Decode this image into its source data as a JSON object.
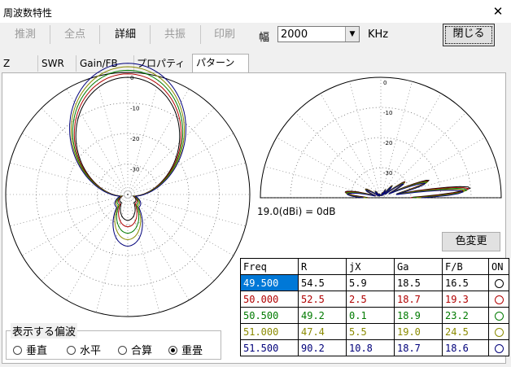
{
  "window": {
    "title": "周波数特性",
    "close_glyph": "✕"
  },
  "toolbar": {
    "buttons": [
      {
        "label": "推測",
        "enabled": false
      },
      {
        "label": "全点",
        "enabled": false
      },
      {
        "label": "詳細",
        "enabled": true
      },
      {
        "label": "共振",
        "enabled": false
      },
      {
        "label": "印刷",
        "enabled": false
      }
    ],
    "width_label": "幅",
    "width_value": "2000",
    "unit_label": "KHz",
    "close_button": "閉じる"
  },
  "tabs": [
    {
      "label": "Z",
      "active": false
    },
    {
      "label": "SWR",
      "active": false
    },
    {
      "label": "Gain/FB",
      "active": false
    },
    {
      "label": "プロパティ",
      "active": false
    },
    {
      "label": "パターン",
      "active": true
    }
  ],
  "plot": {
    "horizontal_ring_labels": [
      "0",
      "-10",
      "-20",
      "-30"
    ],
    "vertical_ring_labels": [
      "0",
      "-10",
      "-20",
      "-30"
    ],
    "reference_text": "19.0(dBi) = 0dB"
  },
  "color_button": "色変更",
  "table": {
    "headers": [
      "Freq",
      "R",
      "jX",
      "Ga",
      "F/B",
      "ON"
    ],
    "rows": [
      {
        "freq": "49.500",
        "r": "54.5",
        "jx": "5.9",
        "ga": "18.5",
        "fb": "16.5",
        "color": "#000000",
        "selected": true
      },
      {
        "freq": "50.000",
        "r": "52.5",
        "jx": "2.5",
        "ga": "18.7",
        "fb": "19.3",
        "color": "#b00000",
        "selected": false
      },
      {
        "freq": "50.500",
        "r": "49.2",
        "jx": "0.1",
        "ga": "18.9",
        "fb": "23.2",
        "color": "#007a00",
        "selected": false
      },
      {
        "freq": "51.000",
        "r": "47.4",
        "jx": "5.5",
        "ga": "19.0",
        "fb": "24.5",
        "color": "#8a8a00",
        "selected": false
      },
      {
        "freq": "51.500",
        "r": "90.2",
        "jx": "10.8",
        "ga": "18.7",
        "fb": "18.6",
        "color": "#00007a",
        "selected": false
      }
    ]
  },
  "polarization": {
    "label": "表示する偏波",
    "options": [
      {
        "label": "垂直",
        "checked": false
      },
      {
        "label": "水平",
        "checked": false
      },
      {
        "label": "合算",
        "checked": false
      },
      {
        "label": "重畳",
        "checked": true
      }
    ]
  }
}
